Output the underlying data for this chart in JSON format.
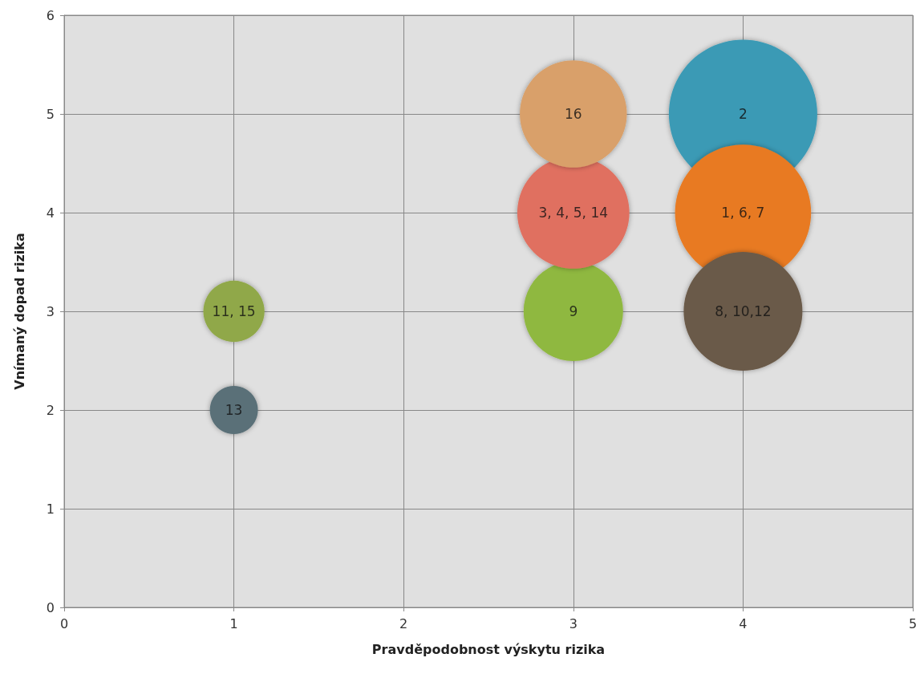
{
  "chart_data": {
    "type": "bubble",
    "xlabel": "Pravděpodobnost výskytu rizika",
    "ylabel": "Vnímaný dopad rizika",
    "x": [
      4,
      4,
      4,
      3,
      3,
      3,
      1,
      1
    ],
    "values": [
      5,
      4,
      3,
      3,
      4,
      5,
      3,
      2
    ],
    "sizes": [
      1,
      0.84,
      0.64,
      0.45,
      0.57,
      0.52,
      0.17,
      0.105
    ],
    "annotations": [
      {
        "text": "2",
        "x": 4,
        "y": 5
      },
      {
        "text": "1, 6, 7",
        "x": 4,
        "y": 4
      },
      {
        "text": "8, 10,12",
        "x": 4,
        "y": 3
      },
      {
        "text": "9",
        "x": 3,
        "y": 3
      },
      {
        "text": "3, 4, 5, 14",
        "x": 3,
        "y": 4
      },
      {
        "text": "16",
        "x": 3,
        "y": 5
      },
      {
        "text": "11, 15",
        "x": 1,
        "y": 3
      },
      {
        "text": "13",
        "x": 1,
        "y": 2
      }
    ],
    "colors": [
      "#3a9ab5",
      "#e87a20",
      "#6b5a48",
      "#8fb840",
      "#e07060",
      "#d9a06a",
      "#90a848",
      "#5a7078"
    ],
    "xlim": [
      0,
      5
    ],
    "xticks": [
      0,
      1,
      2,
      3,
      4,
      5
    ],
    "ylim": [
      0,
      6
    ],
    "yticks": [
      0,
      1,
      2,
      3,
      4,
      5,
      6
    ],
    "grid": true
  }
}
